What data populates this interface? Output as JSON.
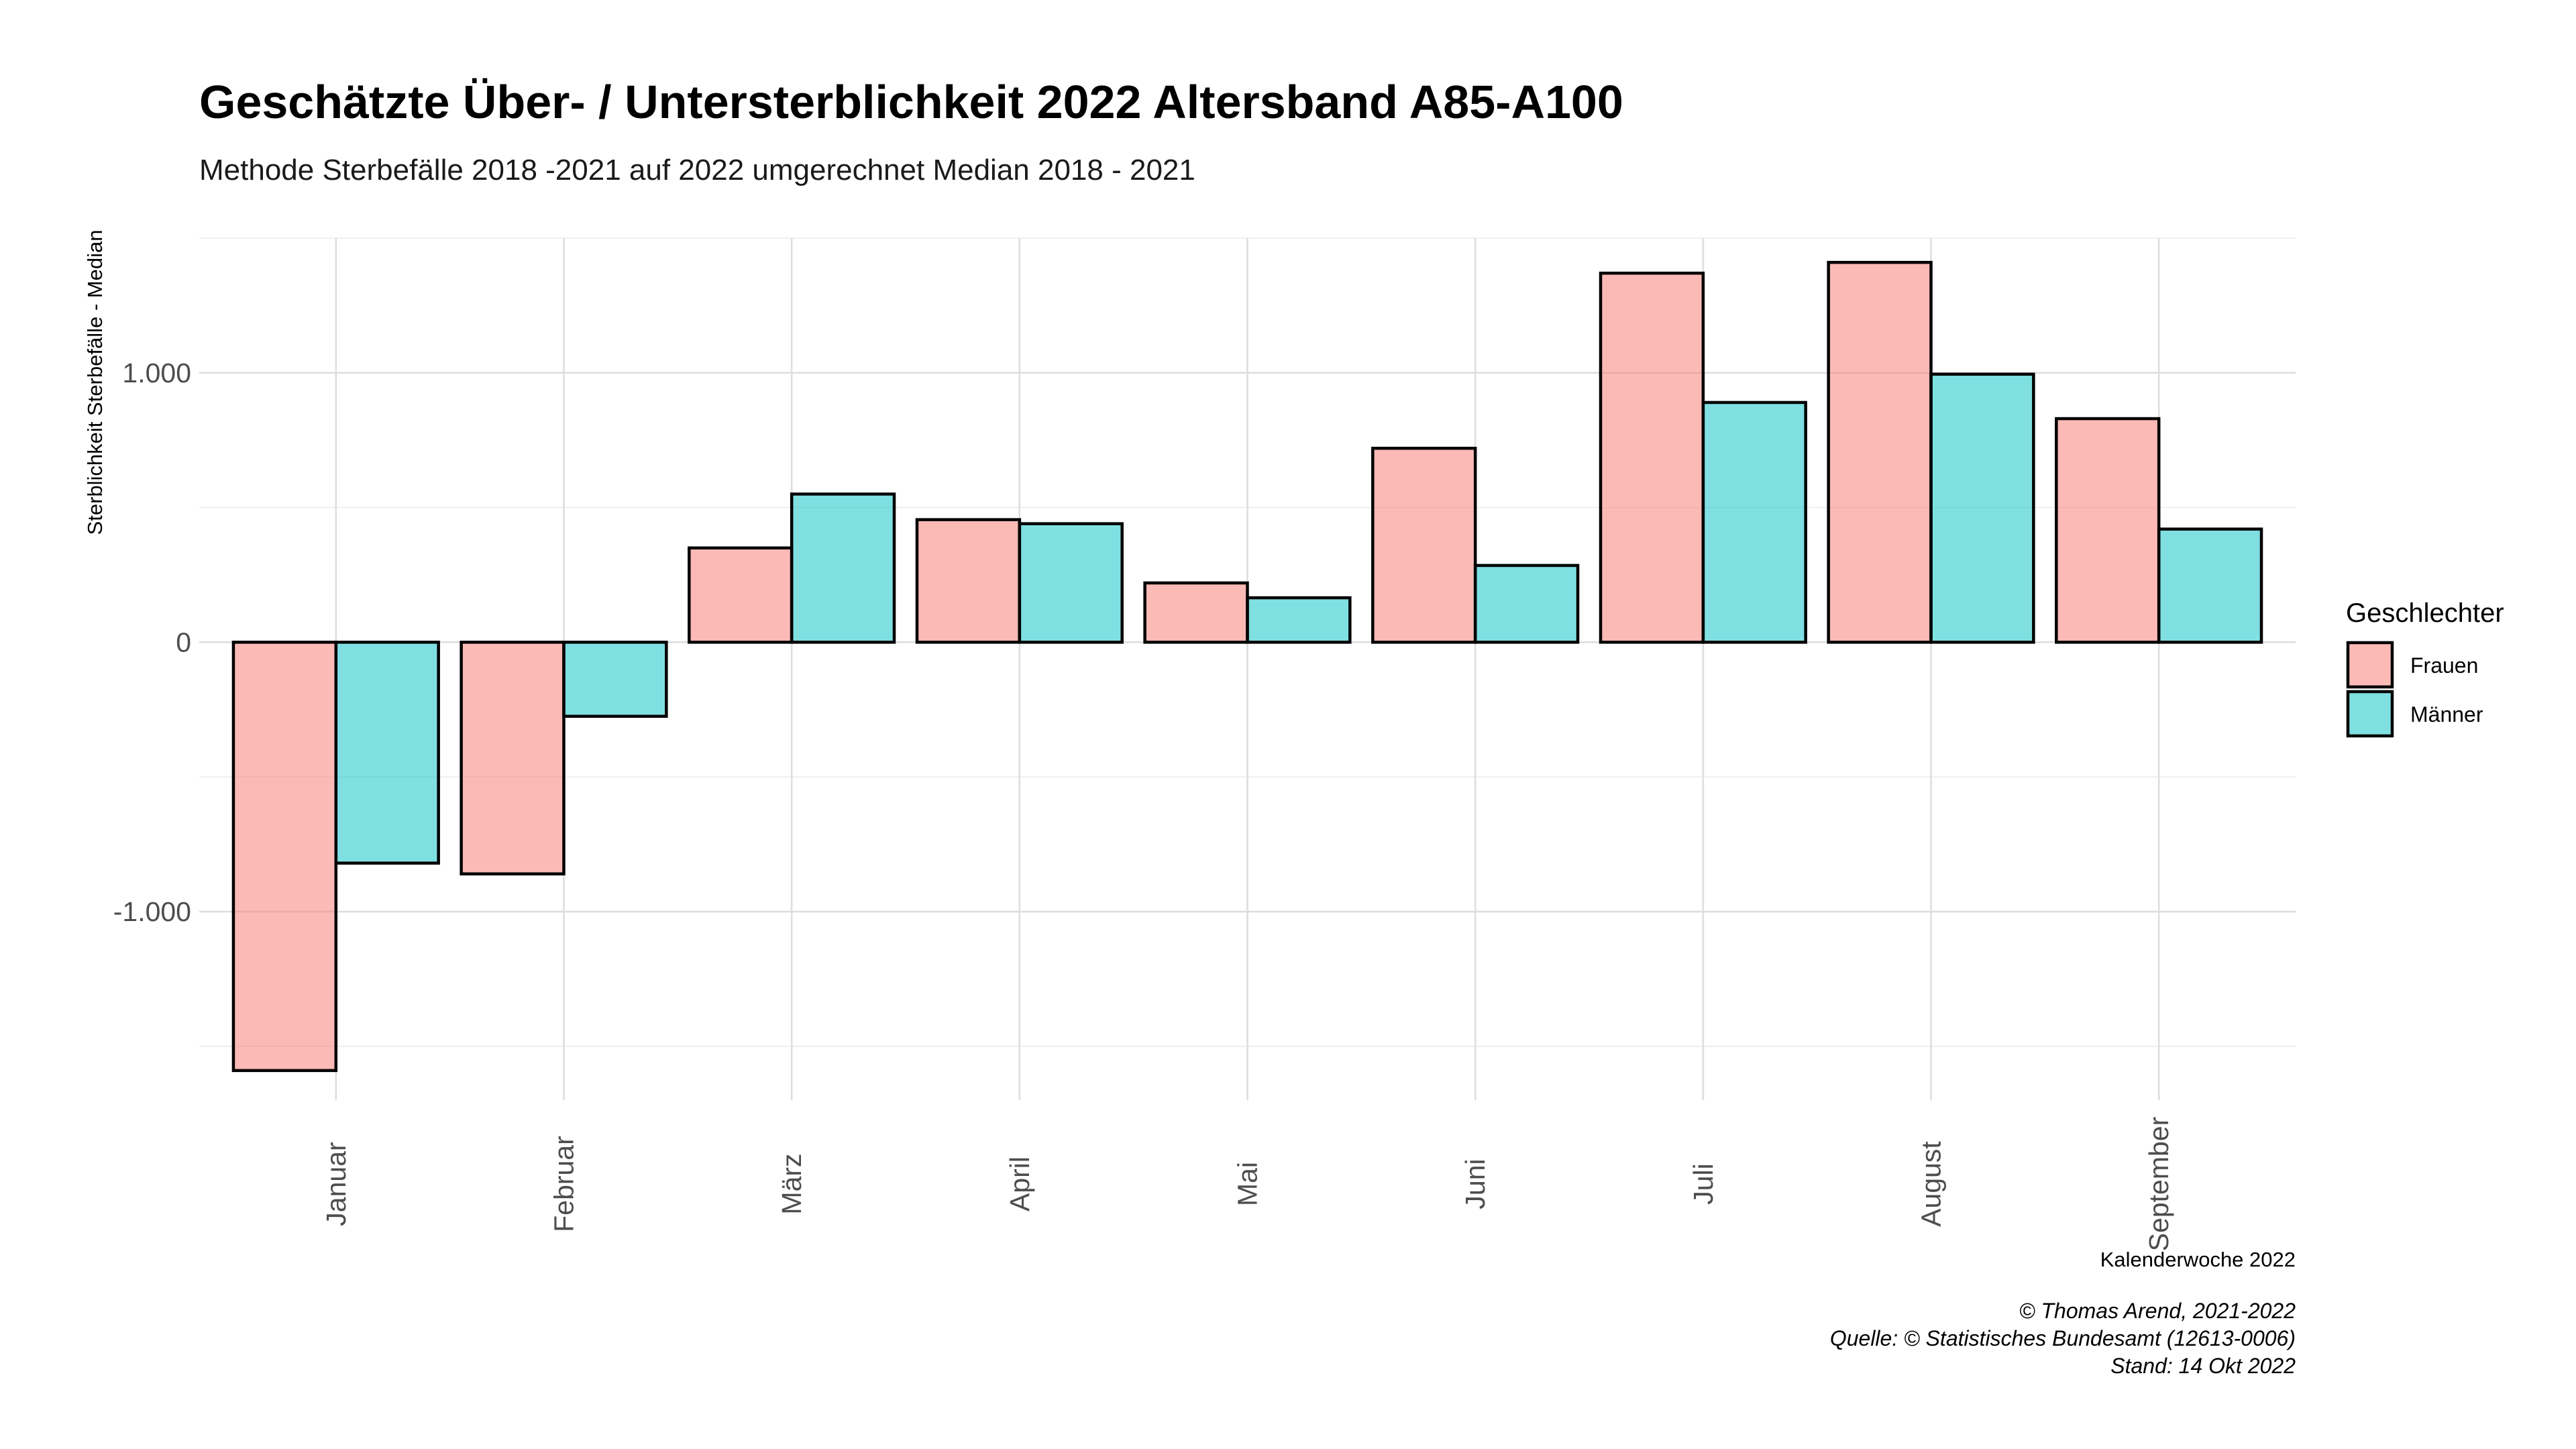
{
  "chart_data": {
    "type": "bar",
    "title": "Geschätzte Über- / Untersterblichkeit 2022 Altersband A85-A100",
    "subtitle": "Methode Sterbefälle 2018 -2021 auf 2022 umgerechnet Median 2018 - 2021",
    "xlabel": "Kalenderwoche 2022",
    "ylabel": "Sterblichkeit Sterbefälle - Median",
    "categories": [
      "Januar",
      "Februar",
      "März",
      "April",
      "Mai",
      "Juni",
      "Juli",
      "August",
      "September"
    ],
    "series": [
      {
        "name": "Frauen",
        "color": "#f8766d",
        "values": [
          -1590,
          -860,
          350,
          455,
          220,
          720,
          1370,
          1410,
          830
        ]
      },
      {
        "name": "Männer",
        "color": "#00bfc4",
        "values": [
          -820,
          -275,
          550,
          440,
          165,
          285,
          890,
          995,
          420
        ]
      }
    ],
    "ylim": [
      -1700,
      1500
    ],
    "y_ticks": [
      -1000,
      0,
      1000
    ],
    "y_tick_labels": [
      "-1.000",
      "0",
      "1.000"
    ],
    "y_minor_ticks": [
      -1500,
      -500,
      500,
      1500
    ],
    "grid": true,
    "legend": {
      "title": "Geschlechter",
      "position": "right"
    },
    "caption": [
      "© Thomas Arend, 2021-2022",
      "Quelle: © Statistisches Bundesamt (12613-0006)",
      "Stand: 14 Okt 2022"
    ]
  }
}
